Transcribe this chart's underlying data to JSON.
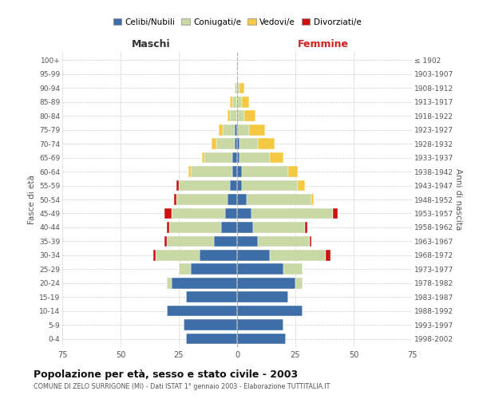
{
  "age_groups": [
    "0-4",
    "5-9",
    "10-14",
    "15-19",
    "20-24",
    "25-29",
    "30-34",
    "35-39",
    "40-44",
    "45-49",
    "50-54",
    "55-59",
    "60-64",
    "65-69",
    "70-74",
    "75-79",
    "80-84",
    "85-89",
    "90-94",
    "95-99",
    "100+"
  ],
  "birth_years": [
    "1998-2002",
    "1993-1997",
    "1988-1992",
    "1983-1987",
    "1978-1982",
    "1973-1977",
    "1968-1972",
    "1963-1967",
    "1958-1962",
    "1953-1957",
    "1948-1952",
    "1943-1947",
    "1938-1942",
    "1933-1937",
    "1928-1932",
    "1923-1927",
    "1918-1922",
    "1913-1917",
    "1908-1912",
    "1903-1907",
    "≤ 1902"
  ],
  "male_celibe": [
    22,
    23,
    30,
    22,
    28,
    20,
    16,
    10,
    7,
    5,
    4,
    3,
    2,
    2,
    1,
    1,
    0,
    0,
    0,
    0,
    0
  ],
  "male_coniugato": [
    0,
    0,
    0,
    0,
    2,
    5,
    19,
    20,
    22,
    23,
    22,
    22,
    18,
    12,
    8,
    5,
    3,
    2,
    1,
    0,
    0
  ],
  "male_vedovo": [
    0,
    0,
    0,
    0,
    0,
    0,
    0,
    0,
    0,
    0,
    0,
    0,
    1,
    1,
    2,
    2,
    1,
    1,
    0,
    0,
    0
  ],
  "male_divorziato": [
    0,
    0,
    0,
    0,
    0,
    0,
    1,
    1,
    1,
    3,
    1,
    1,
    0,
    0,
    0,
    0,
    0,
    0,
    0,
    0,
    0
  ],
  "female_celibe": [
    21,
    20,
    28,
    22,
    25,
    20,
    14,
    9,
    7,
    6,
    4,
    2,
    2,
    1,
    1,
    0,
    0,
    0,
    0,
    0,
    0
  ],
  "female_coniugato": [
    0,
    0,
    0,
    0,
    3,
    8,
    24,
    22,
    22,
    35,
    28,
    24,
    20,
    13,
    8,
    5,
    3,
    2,
    1,
    0,
    0
  ],
  "female_vedova": [
    0,
    0,
    0,
    0,
    0,
    0,
    0,
    0,
    0,
    0,
    1,
    3,
    4,
    6,
    7,
    7,
    5,
    3,
    2,
    0,
    0
  ],
  "female_divorziata": [
    0,
    0,
    0,
    0,
    0,
    0,
    2,
    1,
    1,
    2,
    0,
    0,
    0,
    0,
    0,
    0,
    0,
    0,
    0,
    0,
    0
  ],
  "color_celibe": "#3d6ea8",
  "color_coniugato": "#c8d9a5",
  "color_vedovo": "#f5c842",
  "color_divorziato": "#cc1111",
  "xlim": 75,
  "title": "Popolazione per età, sesso e stato civile - 2003",
  "subtitle": "COMUNE DI ZELO SURRIGONE (MI) - Dati ISTAT 1° gennaio 2003 - Elaborazione TUTTITALIA.IT",
  "ylabel_left": "Fasce di età",
  "ylabel_right": "Anni di nascita",
  "xlabel_left": "Maschi",
  "xlabel_right": "Femmine",
  "legend_labels": [
    "Celibi/Nubili",
    "Coniugati/e",
    "Vedovi/e",
    "Divorziati/e"
  ],
  "background_color": "#ffffff",
  "bar_height": 0.78
}
